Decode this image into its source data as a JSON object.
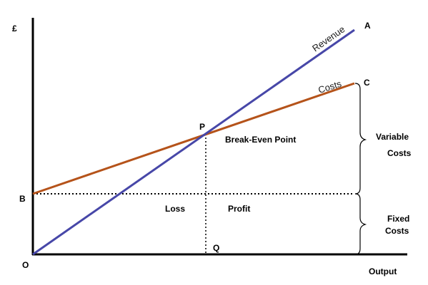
{
  "axes": {
    "y_symbol": "£",
    "origin": "O",
    "x_label": "Output"
  },
  "points": {
    "A": "A",
    "C": "C",
    "B": "B",
    "P": "P",
    "Q": "Q"
  },
  "lines": {
    "revenue": "Revenue",
    "costs": "Costs"
  },
  "annotations": {
    "break_even": "Break-Even Point",
    "loss": "Loss",
    "profit": "Profit",
    "variable_costs_line1": "Variable",
    "variable_costs_line2": "Costs",
    "fixed_costs_line1": "Fixed",
    "fixed_costs_line2": "Costs"
  },
  "colors": {
    "revenue": "#4747a8",
    "costs": "#b5531a",
    "axis": "#000000",
    "dotted": "#000000"
  }
}
